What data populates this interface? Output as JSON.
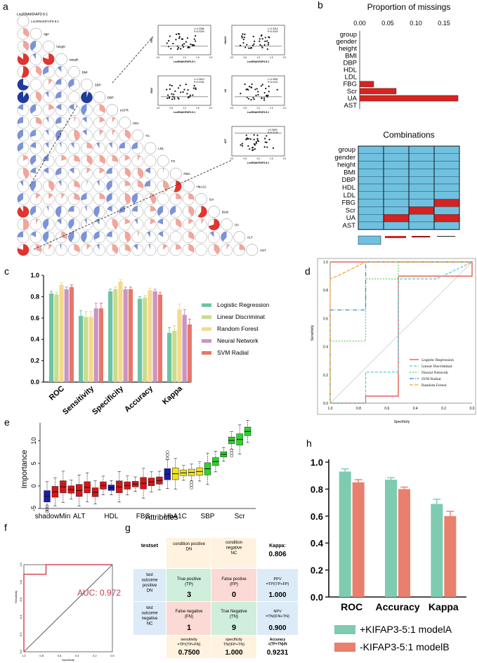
{
  "panel_labels": {
    "a": "a",
    "b": "b",
    "c": "c",
    "d": "d",
    "e": "e",
    "f": "f",
    "g": "g",
    "h": "h"
  },
  "chart_data": [
    {
      "id": "a",
      "type": "correlogram",
      "title": "LncRNAKIFAP3-5:1",
      "variables": [
        "LncRNAKIFAP3-5:1",
        "age",
        "height",
        "weight",
        "BMI",
        "SBP",
        "DBP",
        "eGFR",
        "HDL",
        "TC",
        "LDL",
        "TG",
        "FBG",
        "HbA1C",
        "Scr",
        "BUN",
        "UA",
        "ALT",
        "AST"
      ],
      "scatter_insets": [
        {
          "ylabel": "FBG",
          "xlabel": "LncRNAKIFAP3-5:1",
          "r": "r=-0.3366",
          "p": "P=0.0253"
        },
        {
          "ylabel": "HbA1C",
          "xlabel": "LncRNAKIFAP3-5:1",
          "r": "r=-0.3314",
          "p": "P=0.0320"
        },
        {
          "ylabel": "BUN",
          "xlabel": "LncRNAKIFAP3-5:1",
          "r": "r=-0.3510",
          "p": "P=0.0181"
        },
        {
          "ylabel": "UA",
          "xlabel": "LncRNAKIFAP3-5:1",
          "r": "r=-0.4591",
          "p": "P=0.0121"
        },
        {
          "ylabel": "AST",
          "xlabel": "LncRNAKIFAP3-5:1",
          "r": "r=0.3663",
          "p": "P=0.0134"
        }
      ],
      "inset_x_ticks": [
        "0.0",
        "0.5",
        "1.0",
        "1.5",
        "2.0"
      ]
    },
    {
      "id": "b1",
      "type": "bar",
      "title": "Proportion of missings",
      "categories": [
        "group",
        "gender",
        "height",
        "BMI",
        "DBP",
        "HDL",
        "LDL",
        "FBG",
        "Scr",
        "UA",
        "AST"
      ],
      "values": [
        0,
        0,
        0,
        0,
        0,
        0,
        0,
        0.025,
        0.065,
        0.175,
        0
      ],
      "x_ticks": [
        "0.00",
        "0.05",
        "0.10",
        "0.15"
      ],
      "xlim": [
        0,
        0.175
      ]
    },
    {
      "id": "b2",
      "type": "heatmap",
      "title": "Combinations",
      "rows": [
        "group",
        "gender",
        "height",
        "BMI",
        "DBP",
        "HDL",
        "LDL",
        "FBG",
        "Scr",
        "UA",
        "AST"
      ],
      "missing_cells": [
        [
          8,
          2
        ],
        [
          7,
          3
        ],
        [
          9,
          1
        ],
        [
          9,
          3
        ]
      ]
    },
    {
      "id": "c",
      "type": "bar",
      "categories": [
        "ROC",
        "Sensitivity",
        "Specificity",
        "Accuracy",
        "Kappa"
      ],
      "series": [
        {
          "name": "Logistic Regression",
          "color": "#6cc4a4",
          "values": [
            0.83,
            0.62,
            0.85,
            0.78,
            0.46
          ]
        },
        {
          "name": "Linear Discriminat",
          "color": "#c9dc8c",
          "values": [
            0.82,
            0.61,
            0.87,
            0.79,
            0.48
          ]
        },
        {
          "name": "Random Forest",
          "color": "#f5d98b",
          "values": [
            0.91,
            0.61,
            0.94,
            0.86,
            0.68
          ]
        },
        {
          "name": "Neural Network",
          "color": "#c895c6",
          "values": [
            0.87,
            0.69,
            0.87,
            0.85,
            0.63
          ]
        },
        {
          "name": "SVM Radial",
          "color": "#e8776a",
          "values": [
            0.89,
            0.69,
            0.87,
            0.82,
            0.54
          ]
        }
      ],
      "errors": [
        0.02,
        0.05,
        0.02,
        0.02,
        0.05
      ],
      "y_ticks": [
        "0.0",
        "0.2",
        "0.4",
        "0.6",
        "0.8",
        "1.0"
      ],
      "ylim": [
        0,
        1.0
      ]
    },
    {
      "id": "d",
      "type": "line",
      "xlabel": "Specificity",
      "ylabel": "Sensitivity",
      "x_ticks": [
        "1.0",
        "0.8",
        "0.6",
        "0.4",
        "0.2",
        "0.0"
      ],
      "y_ticks": [
        "0.0",
        "0.2",
        "0.4",
        "0.6",
        "0.8",
        "1.0"
      ],
      "series": [
        {
          "name": "Logistic Regression",
          "color": "#e0443a",
          "dash": "",
          "points": [
            [
              1,
              0
            ],
            [
              0.75,
              0
            ],
            [
              0.75,
              0.05
            ],
            [
              0.52,
              0.05
            ],
            [
              0.52,
              0.9
            ],
            [
              0,
              0.9
            ],
            [
              0,
              1
            ],
            [
              1,
              1
            ]
          ]
        },
        {
          "name": "Linear Discriminat",
          "color": "#4fc5d2",
          "dash": "4,2",
          "points": [
            [
              1,
              0
            ],
            [
              0.75,
              0
            ],
            [
              0.75,
              0.22
            ],
            [
              0.52,
              0.22
            ],
            [
              0.52,
              0.88
            ],
            [
              0.25,
              0.88
            ],
            [
              0,
              1
            ]
          ]
        },
        {
          "name": "Neural Network",
          "color": "#5bd05b",
          "dash": "2,2",
          "points": [
            [
              1,
              0
            ],
            [
              1,
              0.44
            ],
            [
              0.75,
              0.44
            ],
            [
              0.75,
              0.88
            ],
            [
              0.52,
              0.88
            ],
            [
              0.52,
              1
            ],
            [
              0,
              1
            ]
          ]
        },
        {
          "name": "SVM Radial",
          "color": "#2f7fd2",
          "dash": "6,2,1,2",
          "points": [
            [
              1,
              0
            ],
            [
              1,
              0.66
            ],
            [
              0.75,
              0.66
            ],
            [
              0.75,
              1
            ],
            [
              0,
              1
            ]
          ]
        },
        {
          "name": "Random Forest",
          "color": "#f0a030",
          "dash": "5,2",
          "points": [
            [
              1,
              0
            ],
            [
              1,
              0.88
            ],
            [
              0.95,
              0.9
            ],
            [
              0.75,
              1
            ],
            [
              0,
              1
            ]
          ]
        }
      ]
    },
    {
      "id": "e",
      "type": "boxplot",
      "xlabel": "Attributes",
      "ylabel": "Importance",
      "tick_labels": [
        "shadowMin",
        "ALT",
        "HDL",
        "FBG",
        "HbA1C",
        "SBP",
        "Scr"
      ],
      "y_ticks": [
        "-5",
        "0",
        "5",
        "10"
      ],
      "ylim": [
        -5,
        14
      ],
      "medians": [
        -2.3,
        -1.3,
        -0.2,
        -0.8,
        -1.0,
        -0.3,
        -1.4,
        0.1,
        -0.4,
        -0.2,
        0.1,
        0.4,
        0.6,
        0.9,
        1.2,
        2.6,
        2.7,
        2.9,
        3.0,
        3.2,
        3.8,
        5.4,
        7.0,
        10.1,
        10.3,
        12.1
      ],
      "box_colors": [
        "blue",
        "red",
        "red",
        "red",
        "red",
        "red",
        "red",
        "red",
        "blue",
        "red",
        "red",
        "red",
        "red",
        "red",
        "red",
        "blue",
        "yellow",
        "yellow",
        "yellow",
        "yellow",
        "green",
        "green",
        "green",
        "green",
        "green",
        "green"
      ]
    },
    {
      "id": "f",
      "type": "line",
      "xlabel": "Specificity",
      "ylabel": "Sensitivity",
      "auc_label": "AUC: 0.972",
      "x_ticks": [
        "1.0",
        "0.8",
        "0.6",
        "0.4",
        "0.2",
        "0.0"
      ],
      "y_ticks": [
        "0.0",
        "0.2",
        "0.4",
        "0.6",
        "0.8",
        "1.0"
      ],
      "points": [
        [
          1,
          0
        ],
        [
          1,
          0.89
        ],
        [
          0.75,
          0.89
        ],
        [
          0.75,
          1
        ],
        [
          0,
          1
        ]
      ]
    },
    {
      "id": "g",
      "type": "table",
      "testset": "testset",
      "cond_pos": [
        "condition positive",
        "DN"
      ],
      "cond_neg": [
        "condition",
        "negative",
        "NC"
      ],
      "kappa_label": "Kappa:",
      "kappa_value": "0.806",
      "test_pos": [
        "test",
        "outcome",
        "positive",
        "DN"
      ],
      "test_neg": [
        "test",
        "outcome",
        "negative",
        "NC"
      ],
      "tp_label": [
        "True positive",
        "(TP)"
      ],
      "tp": "3",
      "fp_label": [
        "False postive",
        "(FP)"
      ],
      "fp": "0",
      "fn_label": [
        "False negative",
        "(FN)"
      ],
      "fn": "1",
      "tn_label": [
        "True Negative",
        "(TN)"
      ],
      "tn": "9",
      "ppv_label": [
        "PPV",
        "=TP/(TP+FP)"
      ],
      "ppv": "1.000",
      "npv_label": [
        "NPV",
        "=TN/(FN+TN)"
      ],
      "npv": "0.900",
      "sens_label": [
        "sensitivity",
        "=TP/(TP+FN)"
      ],
      "sens": "0.7500",
      "spec_label": [
        "specificity",
        "TN/(FP+TN)"
      ],
      "spec": "1.000",
      "acc_label": [
        "Accuracy",
        "=(TP+TN)/N"
      ],
      "acc": "0.9231"
    },
    {
      "id": "h",
      "type": "bar",
      "categories": [
        "ROC",
        "Accuracy",
        "Kappa"
      ],
      "series": [
        {
          "name": "+KIFAP3-5:1 modelA",
          "color": "#7ecbb0",
          "values": [
            0.93,
            0.87,
            0.69
          ]
        },
        {
          "name": "-KIFAP3-5:1 modelB",
          "color": "#e8806d",
          "values": [
            0.85,
            0.8,
            0.6
          ]
        }
      ],
      "errors": [
        0.02,
        0.015,
        0.035
      ],
      "y_ticks": [
        "0.0",
        "0.2",
        "0.4",
        "0.6",
        "0.8",
        "1.0"
      ],
      "ylim": [
        0,
        1.0
      ]
    }
  ]
}
